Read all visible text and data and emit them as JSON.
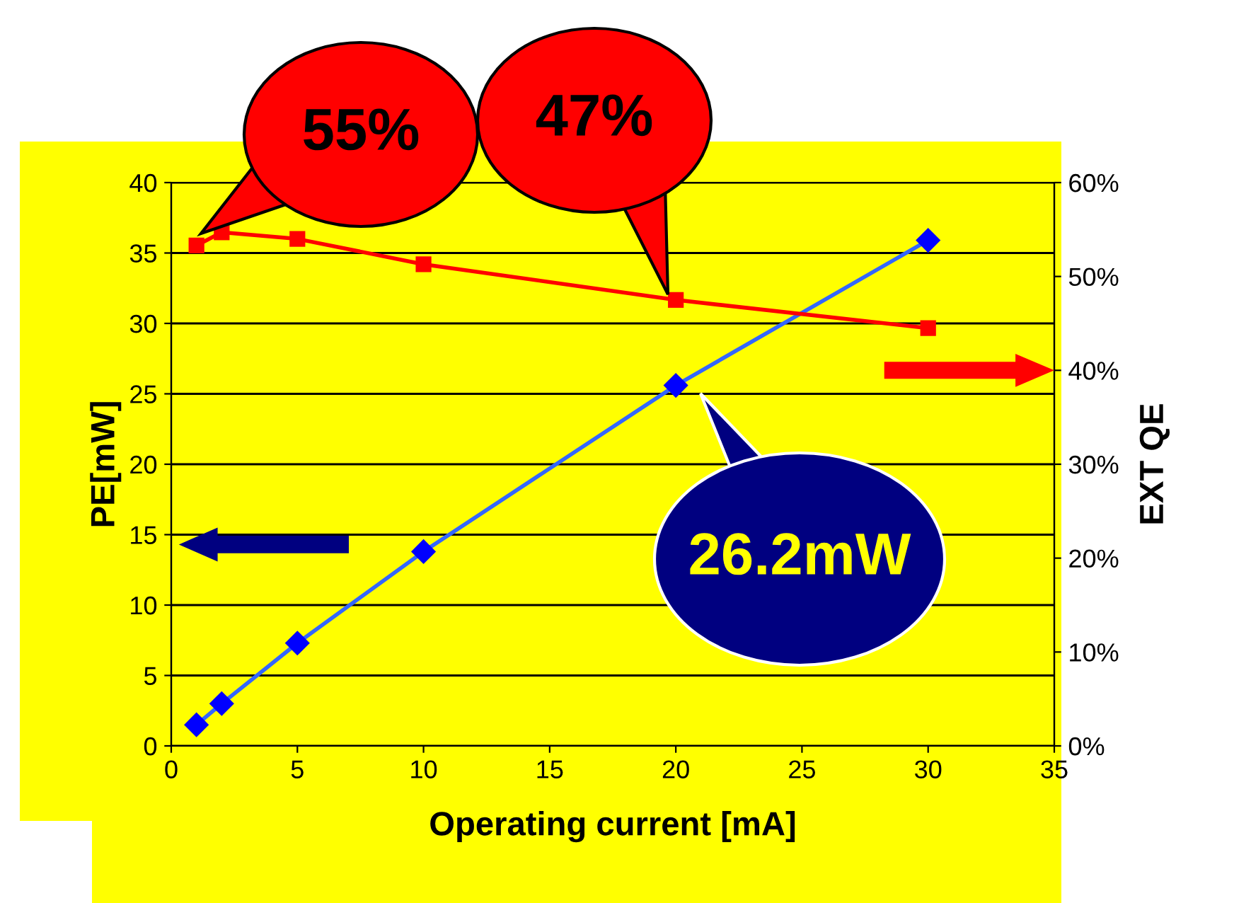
{
  "chart_data": {
    "type": "line",
    "xlabel": "Operating current [mA]",
    "ylabel": "PE[mW]",
    "y2label": "EXT QE",
    "x": [
      1,
      2,
      5,
      10,
      20,
      30
    ],
    "series": [
      {
        "color": "#3366ff",
        "colors": [
          "#0000ff",
          "#0000ff",
          "#0000ff",
          "#0000ff",
          "#0000ff",
          "#0000ff"
        ],
        "marker": "diamond",
        "values": [
          1.5,
          3.0,
          7.3,
          13.8,
          25.6,
          35.9
        ]
      },
      {
        "color": "#ff0000",
        "marker": "square",
        "axis": "y2",
        "values": [
          53.3,
          54.7,
          54.0,
          51.3,
          47.5,
          44.5
        ]
      }
    ],
    "xlim": [
      0,
      35
    ],
    "xticks": [
      0,
      5,
      10,
      15,
      20,
      25,
      30,
      35
    ],
    "ylim": [
      0,
      40
    ],
    "yticks": [
      0,
      5,
      10,
      15,
      20,
      25,
      30,
      35,
      40
    ],
    "y2lim": [
      0,
      60
    ],
    "y2ticks": [
      {
        "value": 0,
        "label": "0%"
      },
      {
        "value": 10,
        "label": "10%"
      },
      {
        "value": 20,
        "label": "20%"
      },
      {
        "value": 30,
        "label": "30%"
      },
      {
        "value": 40,
        "label": "40%"
      },
      {
        "value": 50,
        "label": "50%"
      },
      {
        "value": 60,
        "label": "60%"
      }
    ],
    "grid": "y",
    "legend": false,
    "line_style": "solid",
    "annotations": [
      "55%",
      "47%",
      "26.2mW"
    ]
  }
}
